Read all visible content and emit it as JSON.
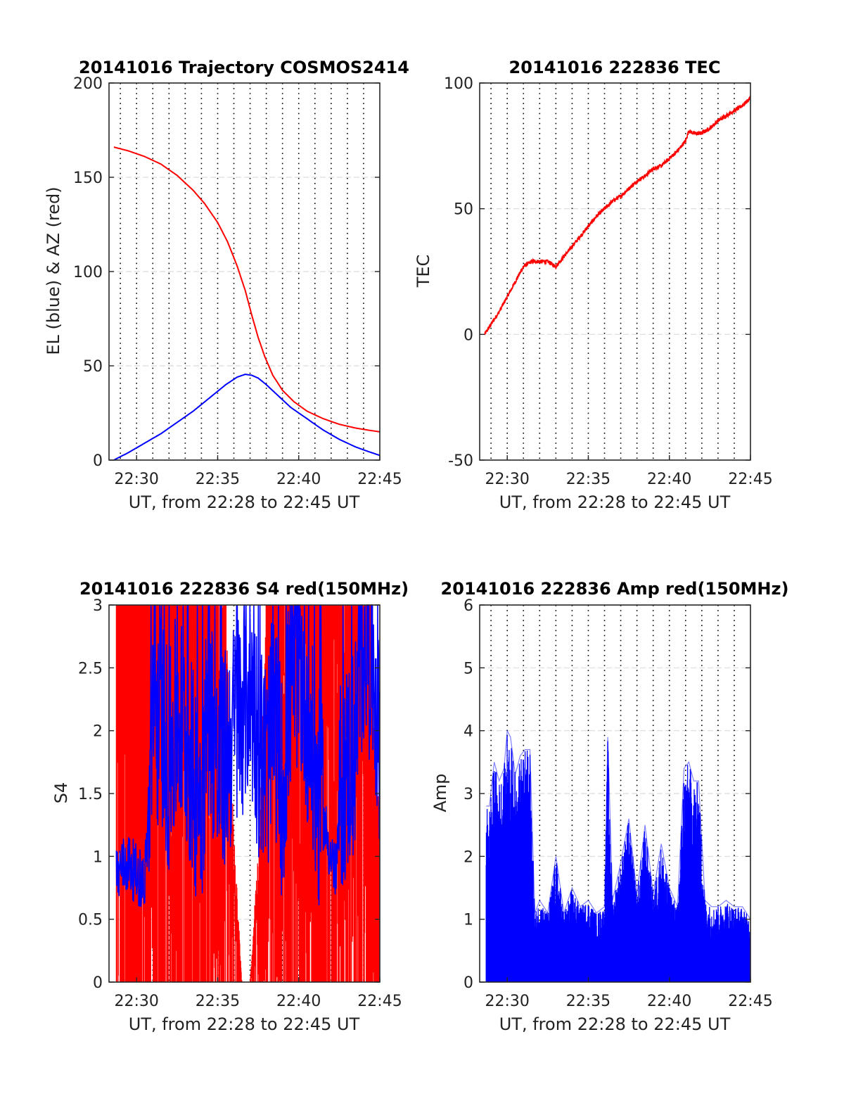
{
  "colors": {
    "red": "#ff0000",
    "blue": "#0000ff"
  },
  "chart_data": [
    {
      "type": "line",
      "title": "20141016 Trajectory COSMOS2414",
      "xlabel": "UT, from 22:28 to 22:45 UT",
      "ylabel": "EL (blue) & AZ (red)",
      "x_unit": "minutes after 22:00 UT",
      "xlim": [
        28.3,
        45
      ],
      "ylim": [
        0,
        200
      ],
      "xticks": [
        30,
        35,
        40,
        45
      ],
      "xtick_labels": [
        "22:30",
        "22:35",
        "22:40",
        "22:45"
      ],
      "yticks": [
        0,
        50,
        100,
        150,
        200
      ],
      "ytick_labels": [
        "0",
        "50",
        "100",
        "150",
        "200"
      ],
      "grid": "dotted vertical lines every 1 min, dashed horizontal lines at y ticks",
      "series": [
        {
          "color": "#ff0000",
          "x": [
            28.6,
            29.5,
            30.5,
            31.5,
            32.5,
            33.5,
            34.2,
            35,
            35.6,
            36.2,
            36.7,
            37.1,
            37.5,
            37.9,
            38.4,
            39,
            39.7,
            40.5,
            41.5,
            42.5,
            43.5,
            44.2,
            45
          ],
          "values": [
            166,
            164,
            161,
            157,
            151,
            143,
            136,
            126,
            116,
            103,
            90,
            77,
            65,
            55,
            45,
            37,
            31,
            26,
            22,
            19,
            17,
            16,
            15
          ]
        },
        {
          "color": "#0000ff",
          "x": [
            28.6,
            29.5,
            30.5,
            31.5,
            32.5,
            33.5,
            34.5,
            35.5,
            36.2,
            36.7,
            37.1,
            37.5,
            38,
            38.5,
            39,
            39.5,
            40.5,
            41.5,
            42.5,
            43.5,
            44.3,
            45
          ],
          "values": [
            0,
            4,
            9,
            14,
            20,
            26,
            33,
            40,
            44,
            45.5,
            45,
            43.5,
            40,
            36,
            32,
            28,
            22,
            16,
            11,
            7,
            4.5,
            2.5
          ]
        }
      ]
    },
    {
      "type": "line",
      "title": "20141016 222836 TEC",
      "xlabel": "UT, from 22:28 to 22:45 UT",
      "ylabel": "TEC",
      "x_unit": "minutes after 22:00 UT",
      "xlim": [
        28.3,
        45
      ],
      "ylim": [
        -50,
        100
      ],
      "xticks": [
        30,
        35,
        40,
        45
      ],
      "xtick_labels": [
        "22:30",
        "22:35",
        "22:40",
        "22:45"
      ],
      "yticks": [
        -50,
        0,
        50,
        100
      ],
      "ytick_labels": [
        "-50",
        "0",
        "50",
        "100"
      ],
      "grid": "dotted vertical lines every 1 min, dashed horizontal lines at y ticks",
      "series": [
        {
          "color": "#ff0000",
          "x": [
            28.6,
            29,
            29.5,
            30,
            30.5,
            31,
            31.5,
            32,
            32.5,
            33,
            33.5,
            34,
            34.5,
            35,
            35.5,
            36,
            36.5,
            37,
            37.5,
            38,
            38.5,
            39,
            39.5,
            40,
            40.5,
            41,
            41.2,
            41.5,
            42,
            42.5,
            43,
            43.5,
            44,
            44.5,
            45
          ],
          "values": [
            0,
            4,
            9,
            15,
            21,
            27,
            29,
            29,
            29,
            27,
            31,
            35,
            39,
            43,
            47,
            50,
            53,
            55,
            58,
            61,
            63,
            66,
            67,
            70,
            73,
            77,
            81,
            80,
            80,
            82,
            85,
            87,
            89,
            91,
            94
          ]
        }
      ]
    },
    {
      "type": "line",
      "title": "20141016 222836 S4 red(150MHz)",
      "xlabel": "UT, from 22:28 to 22:45 UT",
      "ylabel": "S4",
      "x_unit": "minutes after 22:00 UT",
      "xlim": [
        28.3,
        45
      ],
      "ylim": [
        0,
        3
      ],
      "xticks": [
        30,
        35,
        40,
        45
      ],
      "xtick_labels": [
        "22:30",
        "22:35",
        "22:40",
        "22:45"
      ],
      "yticks": [
        0,
        0.5,
        1,
        1.5,
        2,
        2.5,
        3
      ],
      "ytick_labels": [
        "0",
        "0.5",
        "1",
        "1.5",
        "2",
        "2.5",
        "3"
      ],
      "grid": "dotted vertical lines every 1 min, dashed horizontal lines at y ticks",
      "series": [
        {
          "color": "#ff0000",
          "x": [
            28.75,
            29.5,
            30.3,
            31,
            31.5,
            32,
            33,
            34,
            34.5,
            35,
            35.5,
            36,
            36.5,
            37,
            37.5,
            38,
            38.5,
            39,
            39.5,
            40,
            40.5,
            41,
            41.5,
            42,
            42.5,
            43,
            43.5,
            44,
            44.5,
            45
          ],
          "values": [
            3,
            3,
            3,
            3,
            3,
            3,
            3,
            3,
            3,
            3,
            3,
            1.2,
            0,
            0,
            1.1,
            3,
            3,
            3,
            3,
            3,
            3,
            3,
            3,
            3,
            3,
            3,
            3,
            3,
            3,
            1.3
          ]
        },
        {
          "color": "#0000ff",
          "x": [
            28.75,
            29,
            29.5,
            30,
            30.5,
            31,
            31.5,
            32,
            32.5,
            33,
            33.5,
            34,
            34.5,
            35,
            35.5,
            36,
            36.5,
            37,
            37.5,
            38,
            38.5,
            39,
            39.5,
            40,
            40.5,
            41,
            41.5,
            42,
            42.3,
            42.6,
            43,
            43.5,
            44,
            44.5,
            45
          ],
          "values": [
            0.85,
            0.9,
            0.95,
            0.85,
            0.8,
            1.9,
            2.2,
            1.7,
            2.1,
            2.0,
            1.6,
            1.5,
            2.3,
            1.6,
            1.8,
            2.0,
            2.2,
            2.4,
            1.9,
            1.7,
            2.1,
            1.5,
            2.4,
            2.6,
            2.2,
            1.6,
            1.3,
            1.0,
            0.85,
            1.6,
            1.7,
            1.9,
            2.8,
            2.6,
            2.0
          ]
        }
      ]
    },
    {
      "type": "line",
      "title": "20141016 222836 Amp red(150MHz)",
      "xlabel": "UT, from 22:28 to 22:45 UT",
      "ylabel": "Amp",
      "x_unit": "minutes after 22:00 UT",
      "xlim": [
        28.3,
        45
      ],
      "ylim": [
        0,
        6
      ],
      "xticks": [
        30,
        35,
        40,
        45
      ],
      "xtick_labels": [
        "22:30",
        "22:35",
        "22:40",
        "22:45"
      ],
      "yticks": [
        0,
        1,
        2,
        3,
        4,
        5,
        6
      ],
      "ytick_labels": [
        "0",
        "1",
        "2",
        "3",
        "4",
        "5",
        "6"
      ],
      "grid": "dotted vertical lines every 1 min, dashed horizontal lines at y ticks",
      "series": [
        {
          "color": "#0000ff",
          "x": [
            28.7,
            28.9,
            29.2,
            29.5,
            29.8,
            30,
            30.2,
            30.5,
            30.8,
            31.1,
            31.4,
            31.7,
            32,
            32.5,
            33,
            33.5,
            34,
            34.5,
            35,
            35.5,
            36,
            36.2,
            36.5,
            37,
            37.5,
            38,
            38.5,
            39,
            39.5,
            40,
            40.5,
            40.9,
            41.2,
            41.5,
            41.8,
            42.2,
            42.6,
            43,
            43.5,
            44,
            44.5,
            45
          ],
          "values": [
            2.8,
            2.8,
            3.5,
            3.2,
            3.4,
            4.0,
            3.9,
            3.3,
            3.6,
            3.7,
            3.7,
            1.1,
            1.3,
            1.1,
            2.0,
            1.1,
            1.5,
            1.2,
            1.3,
            1.1,
            1.2,
            3.9,
            1.3,
            1.9,
            2.6,
            1.4,
            2.5,
            1.4,
            2.2,
            1.5,
            1.2,
            3.4,
            3.5,
            3.2,
            3.2,
            1.3,
            1.2,
            1.2,
            1.3,
            1.2,
            1.2,
            1.0
          ]
        }
      ]
    }
  ]
}
